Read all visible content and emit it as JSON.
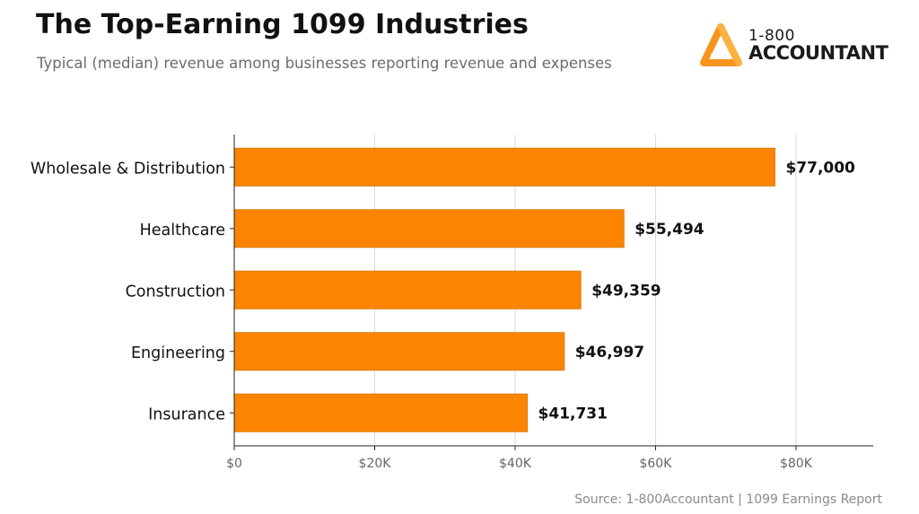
{
  "header": {
    "title": "The Top-Earning 1099 Industries",
    "subtitle": "Typical (median) revenue among businesses reporting revenue and expenses"
  },
  "logo": {
    "line1": "1-800",
    "line2": "ACCOUNTANT",
    "icon": "triangle-a-logo-icon"
  },
  "source": "Source: 1-800Accountant  |  1099 Earnings Report",
  "colors": {
    "bar": "#fb8500",
    "bar_edge": "#e07800",
    "grid": "#d9d9d9",
    "axis": "#222222",
    "tick_text": "#666666"
  },
  "chart_data": {
    "type": "bar",
    "orientation": "horizontal",
    "title": "The Top-Earning 1099 Industries",
    "subtitle": "Typical (median) revenue among businesses reporting revenue and expenses",
    "xlabel": "",
    "ylabel": "",
    "categories": [
      "Wholesale & Distribution",
      "Healthcare",
      "Construction",
      "Engineering",
      "Insurance"
    ],
    "values": [
      77000,
      55494,
      49359,
      46997,
      41731
    ],
    "value_labels": [
      "$77,000",
      "$55,494",
      "$49,359",
      "$46,997",
      "$41,731"
    ],
    "xlim": [
      0,
      91000
    ],
    "xticks": [
      0,
      20000,
      40000,
      60000,
      80000
    ],
    "xtick_labels": [
      "$0",
      "$20K",
      "$40K",
      "$60K",
      "$80K"
    ],
    "grid": "vertical",
    "legend": "none"
  }
}
